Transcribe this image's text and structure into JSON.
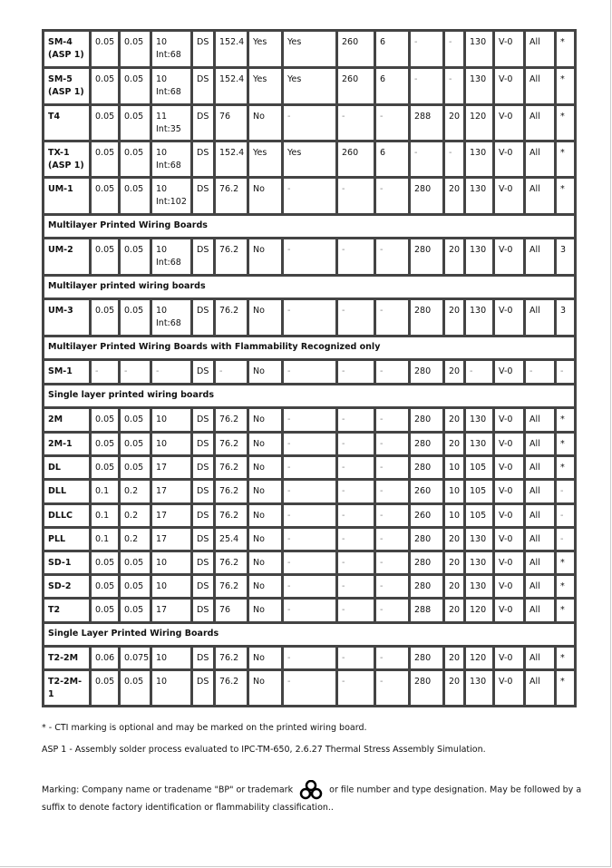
{
  "rows": [
    {
      "type": "row",
      "cells": [
        "SM-4\n(ASP 1)",
        "0.05",
        "0.05",
        "10\nInt:68",
        "DS",
        "152.4",
        "Yes",
        "Yes",
        "260",
        "6",
        "-",
        "-",
        "130",
        "V-0",
        "All",
        "*"
      ],
      "h": 41
    },
    {
      "type": "row",
      "cells": [
        "SM-5\n(ASP 1)",
        "0.05",
        "0.05",
        "10\nInt:68",
        "DS",
        "152.4",
        "Yes",
        "Yes",
        "260",
        "6",
        "-",
        "-",
        "130",
        "V-0",
        "All",
        "*"
      ],
      "h": 41
    },
    {
      "type": "row",
      "cells": [
        "T4",
        "0.05",
        "0.05",
        "11\nInt:35",
        "DS",
        "76",
        "No",
        "-",
        "-",
        "-",
        "288",
        "20",
        "120",
        "V-0",
        "All",
        "*"
      ],
      "h": 40
    },
    {
      "type": "row",
      "cells": [
        "TX-1\n(ASP 1)",
        "0.05",
        "0.05",
        "10\nInt:68",
        "DS",
        "152.4",
        "Yes",
        "Yes",
        "260",
        "6",
        "-",
        "-",
        "130",
        "V-0",
        "All",
        "*"
      ],
      "h": 40
    },
    {
      "type": "row",
      "cells": [
        "UM-1",
        "0.05",
        "0.05",
        "10\nInt:102",
        "DS",
        "76.2",
        "No",
        "-",
        "-",
        "-",
        "280",
        "20",
        "130",
        "V-0",
        "All",
        "*"
      ],
      "h": 41
    },
    {
      "type": "section",
      "label": "Multilayer Printed Wiring Boards"
    },
    {
      "type": "row",
      "cells": [
        "UM-2",
        "0.05",
        "0.05",
        "10\nInt:68",
        "DS",
        "76.2",
        "No",
        "-",
        "-",
        "-",
        "280",
        "20",
        "130",
        "V-0",
        "All",
        "3"
      ],
      "h": 41
    },
    {
      "type": "section",
      "label": "Multilayer printed wiring boards"
    },
    {
      "type": "row",
      "cells": [
        "UM-3",
        "0.05",
        "0.05",
        "10\nInt:68",
        "DS",
        "76.2",
        "No",
        "-",
        "-",
        "-",
        "280",
        "20",
        "130",
        "V-0",
        "All",
        "3"
      ],
      "h": 41
    },
    {
      "type": "section",
      "label": "Multilayer Printed Wiring Boards with Flammability Recognized only"
    },
    {
      "type": "row",
      "cells": [
        "SM-1",
        "-",
        "-",
        "-",
        "DS",
        "-",
        "No",
        "-",
        "-",
        "-",
        "280",
        "20",
        "-",
        "V-0",
        "-",
        "-"
      ],
      "h": 27
    },
    {
      "type": "section",
      "label": "Single layer printed wiring boards"
    },
    {
      "type": "row",
      "cells": [
        "2M",
        "0.05",
        "0.05",
        "10",
        "DS",
        "76.2",
        "No",
        "-",
        "-",
        "-",
        "280",
        "20",
        "130",
        "V-0",
        "All",
        "*"
      ],
      "h": 27
    },
    {
      "type": "row",
      "cells": [
        "2M-1",
        "0.05",
        "0.05",
        "10",
        "DS",
        "76.2",
        "No",
        "-",
        "-",
        "-",
        "280",
        "20",
        "130",
        "V-0",
        "All",
        "*"
      ],
      "h": 26
    },
    {
      "type": "row",
      "cells": [
        "DL",
        "0.05",
        "0.05",
        "17",
        "DS",
        "76.2",
        "No",
        "-",
        "-",
        "-",
        "280",
        "10",
        "105",
        "V-0",
        "All",
        "*"
      ],
      "h": 26
    },
    {
      "type": "row",
      "cells": [
        "DLL",
        "0.1",
        "0.2",
        "17",
        "DS",
        "76.2",
        "No",
        "-",
        "-",
        "-",
        "260",
        "10",
        "105",
        "V-0",
        "All",
        "-"
      ],
      "h": 27
    },
    {
      "type": "row",
      "cells": [
        "DLLC",
        "0.1",
        "0.2",
        "17",
        "DS",
        "76.2",
        "No",
        "-",
        "-",
        "-",
        "260",
        "10",
        "105",
        "V-0",
        "All",
        "-"
      ],
      "h": 26
    },
    {
      "type": "row",
      "cells": [
        "PLL",
        "0.1",
        "0.2",
        "17",
        "DS",
        "25.4",
        "No",
        "-",
        "-",
        "-",
        "280",
        "20",
        "130",
        "V-0",
        "All",
        "-"
      ],
      "h": 26
    },
    {
      "type": "row",
      "cells": [
        "SD-1",
        "0.05",
        "0.05",
        "10",
        "DS",
        "76.2",
        "No",
        "-",
        "-",
        "-",
        "280",
        "20",
        "130",
        "V-0",
        "All",
        "*"
      ],
      "h": 26
    },
    {
      "type": "row",
      "cells": [
        "SD-2",
        "0.05",
        "0.05",
        "10",
        "DS",
        "76.2",
        "No",
        "-",
        "-",
        "-",
        "280",
        "20",
        "130",
        "V-0",
        "All",
        "*"
      ],
      "h": 26
    },
    {
      "type": "row",
      "cells": [
        "T2",
        "0.05",
        "0.05",
        "17",
        "DS",
        "76",
        "No",
        "-",
        "-",
        "-",
        "288",
        "20",
        "120",
        "V-0",
        "All",
        "*"
      ],
      "h": 27
    },
    {
      "type": "section",
      "label": "Single Layer Printed Wiring Boards"
    },
    {
      "type": "row",
      "cells": [
        "T2-2M",
        "0.06",
        "0.075",
        "10",
        "DS",
        "76.2",
        "No",
        "-",
        "-",
        "-",
        "280",
        "20",
        "120",
        "V-0",
        "All",
        "*"
      ],
      "h": 26
    },
    {
      "type": "row",
      "cells": [
        "T2-2M-\n1",
        "0.05",
        "0.05",
        "10",
        "DS",
        "76.2",
        "No",
        "-",
        "-",
        "-",
        "280",
        "20",
        "130",
        "V-0",
        "All",
        "*"
      ],
      "h": 40
    }
  ],
  "notes": {
    "cti": "* - CTI marking is optional and may be marked on the printed wiring board.",
    "asp": "ASP 1 - Assembly solder process evaluated to IPC-TM-650, 2.6.27 Thermal Stress Assembly Simulation.",
    "marking_before": "Marking: Company name or tradename \"BP\" or trademark",
    "marking_after": "or file number and type designation. May be followed by a",
    "marking_line2": "suffix to denote factory identification or flammability classification..",
    "trademark_icon": "ul-recognized-component-mark-icon"
  }
}
